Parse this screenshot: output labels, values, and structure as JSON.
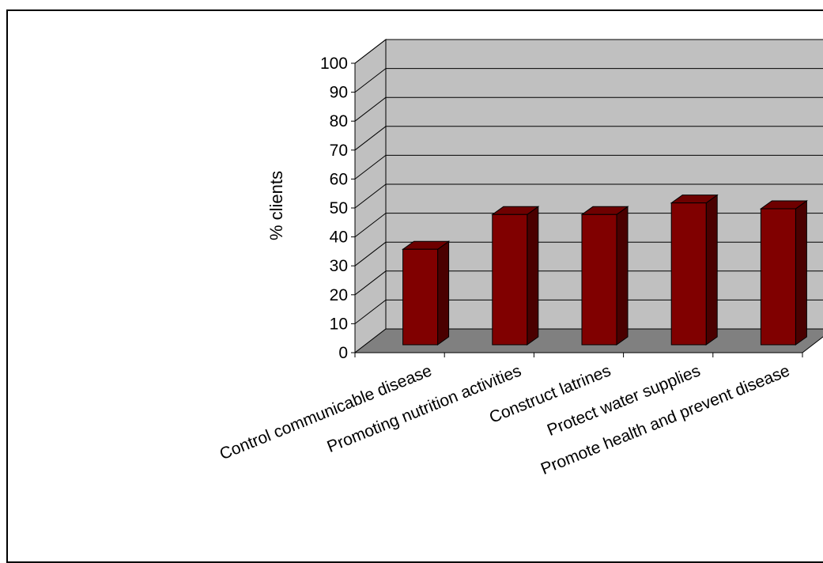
{
  "chart_data": {
    "type": "bar",
    "style": "3d-column",
    "ylabel": "% clients",
    "xlabel": "",
    "title": "",
    "ylim": [
      0,
      100
    ],
    "yticks": [
      0,
      10,
      20,
      30,
      40,
      50,
      60,
      70,
      80,
      90,
      100
    ],
    "grid": true,
    "legend": "none",
    "categories": [
      "Control communicable disease",
      "Promoting nutrition activities",
      "Construct latrines",
      "Protect water supplies",
      "Promote health and prevent disease"
    ],
    "values": [
      33,
      45,
      45,
      49,
      47
    ],
    "colors": {
      "bar_front": "#800000",
      "bar_side": "#4a0000",
      "bar_top": "#6e0000",
      "back_wall": "#c0c0c0",
      "floor": "#808080",
      "gridline": "#000000"
    }
  }
}
